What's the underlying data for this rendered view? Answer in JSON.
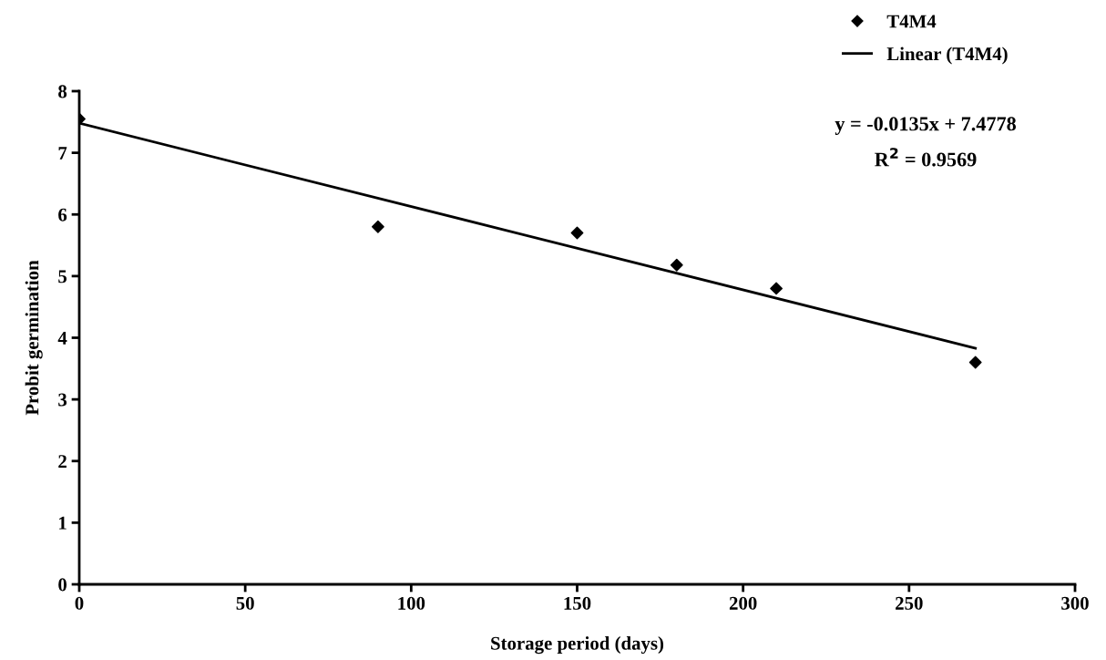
{
  "chart_data": {
    "type": "scatter",
    "xlabel": "Storage period (days)",
    "ylabel": "Probit germination",
    "series": [
      {
        "name": "T4M4",
        "color": "#000000",
        "marker": "diamond",
        "x": [
          0,
          90,
          150,
          180,
          210,
          270
        ],
        "values": [
          7.55,
          5.8,
          5.7,
          5.18,
          4.8,
          3.6
        ]
      },
      {
        "name": "Linear (T4M4)",
        "type": "line",
        "color": "#000000",
        "marker": "none",
        "line_style": "solid",
        "x": [
          0,
          270
        ],
        "values": [
          7.48,
          3.83
        ]
      }
    ],
    "annotations": [
      "y = -0.0135x + 7.4778",
      "R$^{2}$ = 0.9569"
    ],
    "xlim": [
      0,
      300
    ],
    "xticks": [
      0,
      50,
      100,
      150,
      200,
      250,
      300
    ],
    "ylim": [
      0,
      8
    ],
    "yticks": [
      0,
      1,
      2,
      3,
      4,
      5,
      6,
      7,
      8
    ],
    "grid": false,
    "legend": "top right"
  }
}
